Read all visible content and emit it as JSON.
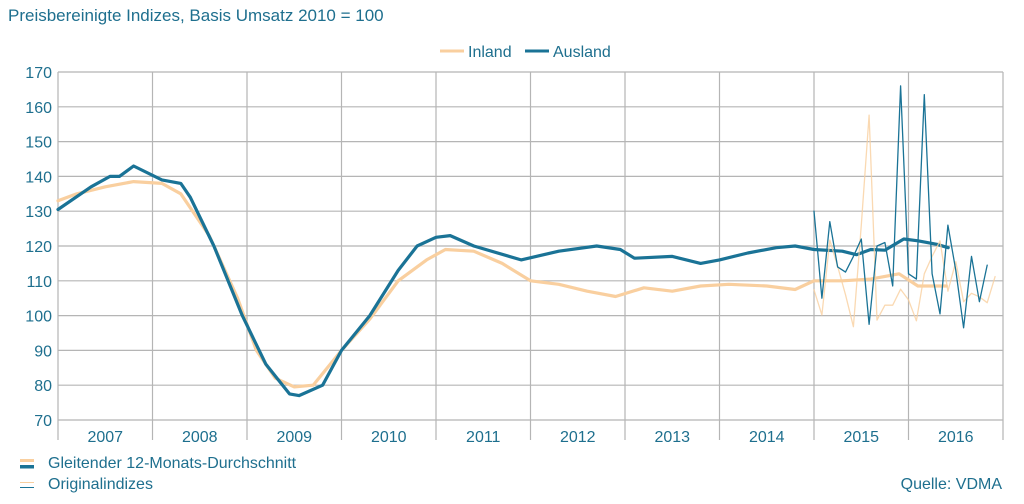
{
  "chart_data": {
    "type": "line",
    "title": "Preisbereinigte Indizes, Basis Umsatz 2010 = 100",
    "source": "Quelle: VDMA",
    "ylim": [
      70,
      170
    ],
    "yticks": [
      70,
      80,
      90,
      100,
      110,
      120,
      130,
      140,
      150,
      160,
      170
    ],
    "xlim": [
      2007,
      2017
    ],
    "xtick_labels": [
      "2007",
      "2008",
      "2009",
      "2010",
      "2011",
      "2012",
      "2013",
      "2014",
      "2015",
      "2016"
    ],
    "grid": true,
    "legend": {
      "position": "top-center",
      "entries": [
        "Inland",
        "Ausland"
      ]
    },
    "legend_bottom": {
      "position": "bottom-left",
      "entries": [
        "Gleitender 12-Monats-Durchschnitt",
        "Originalindizes"
      ]
    },
    "colors": {
      "Inland": "#f9cf9f",
      "Ausland": "#1a7396"
    },
    "series": [
      {
        "name": "Inland",
        "kind": "Gleitender 12-Monats-Durchschnitt",
        "points": [
          [
            2007.0,
            133
          ],
          [
            2007.2,
            135
          ],
          [
            2007.5,
            137
          ],
          [
            2007.8,
            138.5
          ],
          [
            2008.1,
            138
          ],
          [
            2008.3,
            135
          ],
          [
            2008.6,
            123
          ],
          [
            2008.9,
            105
          ],
          [
            2009.1,
            90
          ],
          [
            2009.3,
            82
          ],
          [
            2009.5,
            79.5
          ],
          [
            2009.7,
            80
          ],
          [
            2010.0,
            90
          ],
          [
            2010.3,
            99
          ],
          [
            2010.6,
            110
          ],
          [
            2010.9,
            116
          ],
          [
            2011.1,
            119
          ],
          [
            2011.4,
            118.5
          ],
          [
            2011.7,
            115
          ],
          [
            2012.0,
            110
          ],
          [
            2012.3,
            109
          ],
          [
            2012.6,
            107
          ],
          [
            2012.9,
            105.5
          ],
          [
            2013.2,
            108
          ],
          [
            2013.5,
            107
          ],
          [
            2013.8,
            108.5
          ],
          [
            2014.1,
            109
          ],
          [
            2014.5,
            108.5
          ],
          [
            2014.8,
            107.5
          ],
          [
            2015.0,
            110
          ],
          [
            2015.3,
            110
          ],
          [
            2015.6,
            110.5
          ],
          [
            2015.9,
            112
          ],
          [
            2016.1,
            108.5
          ],
          [
            2016.4,
            108.5
          ]
        ]
      },
      {
        "name": "Ausland",
        "kind": "Gleitender 12-Monats-Durchschnitt",
        "points": [
          [
            2007.0,
            130.5
          ],
          [
            2007.35,
            137
          ],
          [
            2007.55,
            140
          ],
          [
            2007.65,
            140
          ],
          [
            2007.8,
            143
          ],
          [
            2008.1,
            139
          ],
          [
            2008.3,
            138
          ],
          [
            2008.4,
            134
          ],
          [
            2008.65,
            120
          ],
          [
            2008.95,
            100
          ],
          [
            2009.2,
            86
          ],
          [
            2009.45,
            77.5
          ],
          [
            2009.55,
            77
          ],
          [
            2009.8,
            80
          ],
          [
            2010.0,
            90
          ],
          [
            2010.3,
            100
          ],
          [
            2010.6,
            113
          ],
          [
            2010.8,
            120
          ],
          [
            2011.0,
            122.5
          ],
          [
            2011.15,
            123
          ],
          [
            2011.4,
            120
          ],
          [
            2011.9,
            116
          ],
          [
            2012.3,
            118.5
          ],
          [
            2012.7,
            120
          ],
          [
            2012.95,
            119
          ],
          [
            2013.1,
            116.5
          ],
          [
            2013.5,
            117
          ],
          [
            2013.8,
            115
          ],
          [
            2014.0,
            116
          ],
          [
            2014.3,
            118
          ],
          [
            2014.6,
            119.5
          ],
          [
            2014.8,
            120
          ],
          [
            2015.0,
            119
          ],
          [
            2015.3,
            118.5
          ],
          [
            2015.45,
            117.5
          ],
          [
            2015.6,
            119
          ],
          [
            2015.75,
            118.8
          ],
          [
            2015.95,
            122
          ],
          [
            2016.1,
            121.5
          ],
          [
            2016.3,
            120.5
          ],
          [
            2016.42,
            119.5
          ]
        ]
      },
      {
        "name": "Inland",
        "kind": "Originalindizes",
        "start": 2015.0,
        "step_months": 1,
        "values": [
          107.4,
          100.2,
          121.7,
          114.2,
          106,
          96.8,
          126,
          157.6,
          98.7,
          103,
          103,
          107.6,
          104.5,
          98.5,
          112,
          117,
          121.5,
          107,
          115.5,
          104,
          106.4,
          105.4,
          103.7,
          111.2
        ]
      },
      {
        "name": "Ausland",
        "kind": "Originalindizes",
        "start": 2015.0,
        "step_months": 1,
        "values": [
          130,
          105,
          127,
          114,
          112.5,
          117,
          122,
          97.5,
          120,
          121,
          108.5,
          166,
          112,
          110.5,
          163.5,
          112,
          100.5,
          126,
          113,
          96.5,
          117,
          104,
          114.5
        ]
      }
    ]
  }
}
